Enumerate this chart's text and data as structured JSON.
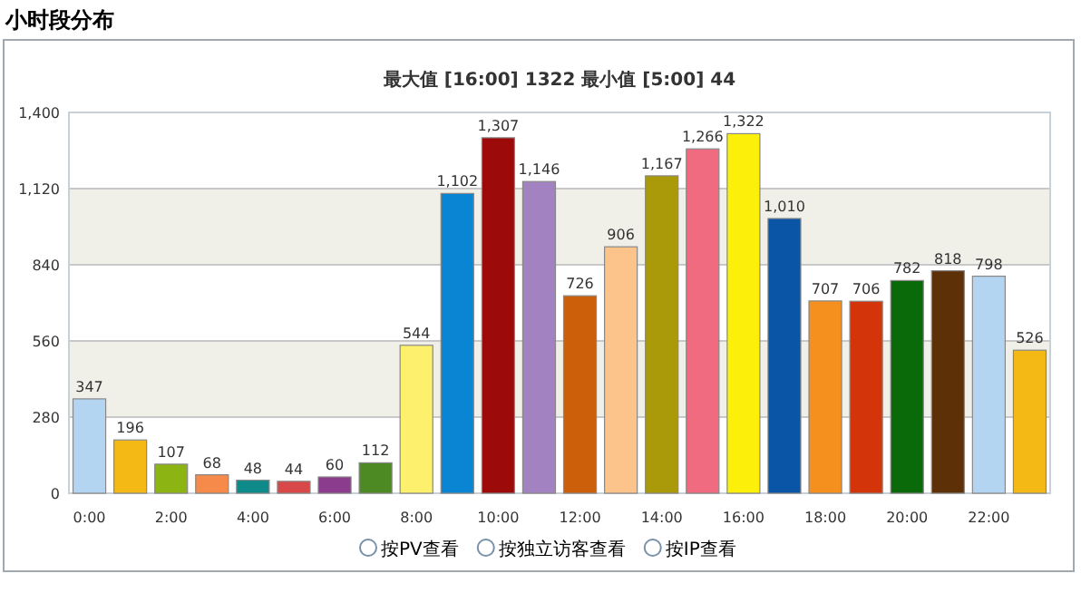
{
  "chart_data": {
    "type": "bar",
    "title": "小时段分布",
    "subtitle": "最大值 [16:00]  1322   最小值 [5:00]  44",
    "categories": [
      "0:00",
      null,
      "2:00",
      null,
      "4:00",
      null,
      "6:00",
      null,
      "8:00",
      null,
      "10:00",
      null,
      "12:00",
      null,
      "14:00",
      null,
      "16:00",
      null,
      "18:00",
      null,
      "20:00",
      null,
      "22:00",
      null
    ],
    "values": [
      347,
      196,
      107,
      68,
      48,
      44,
      60,
      112,
      544,
      1102,
      1307,
      1146,
      726,
      906,
      1167,
      1266,
      1322,
      1010,
      707,
      706,
      782,
      818,
      798,
      526
    ],
    "value_labels": [
      "347",
      "196",
      "107",
      "68",
      "48",
      "44",
      "60",
      "112",
      "544",
      "1,102",
      "1,307",
      "1,146",
      "726",
      "906",
      "1,167",
      "1,266",
      "1,322",
      "1,010",
      "707",
      "706",
      "782",
      "818",
      "798",
      "526"
    ],
    "colors": [
      "#b3d5f2",
      "#f5b915",
      "#8cb412",
      "#f58a4a",
      "#0e8a8a",
      "#d94848",
      "#8c3c8c",
      "#4e8a23",
      "#fdf06c",
      "#0a85d4",
      "#9c0a0a",
      "#a382c2",
      "#cc600a",
      "#fcc38b",
      "#aa9a0a",
      "#f06a80",
      "#fcf00a",
      "#0a55a5",
      "#f5901e",
      "#d4340a",
      "#0a6a0a",
      "#5e3008",
      "#b3d5f2",
      "#f5b915"
    ],
    "ylim": [
      0,
      1400
    ],
    "yticks": [
      0,
      280,
      560,
      840,
      {
        "value": 1120,
        "label": "1,120"
      },
      {
        "value": 1400,
        "label": "1,400"
      }
    ],
    "grid": "y",
    "bands": [
      {
        "axis": "y",
        "from": 280,
        "to": 560,
        "color": "#f0f0e8"
      },
      {
        "axis": "y",
        "from": 840,
        "to": 1120,
        "color": "#f0f0e8"
      }
    ],
    "annotations": [
      "按PV查看",
      "按独立访客查看",
      "按IP查看"
    ]
  }
}
